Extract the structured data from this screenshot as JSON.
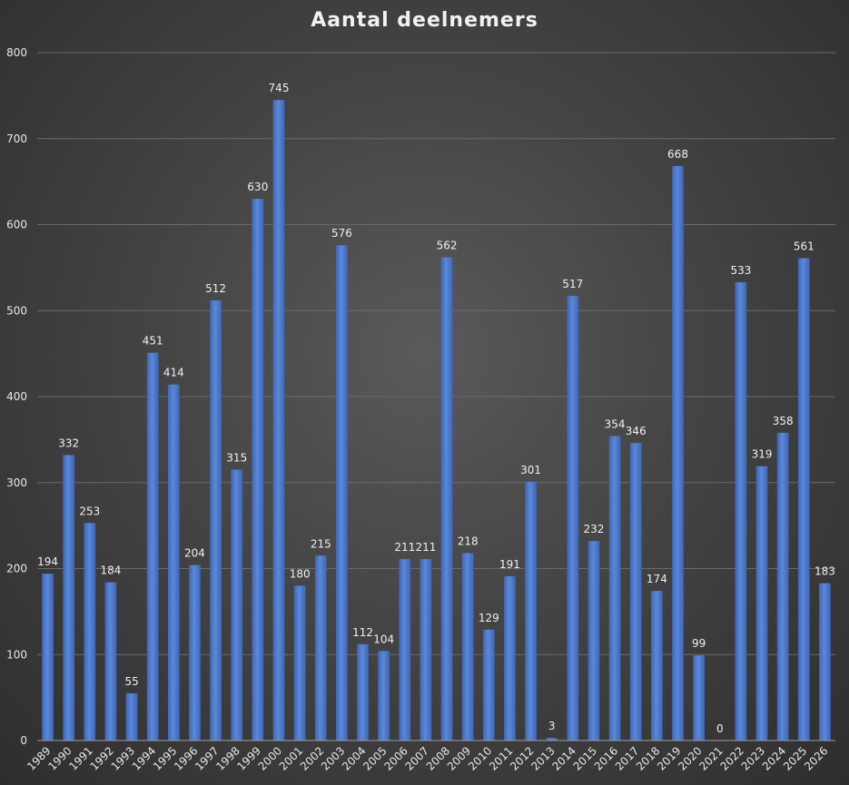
{
  "chart_data": {
    "type": "bar",
    "title": "Aantal deelnemers",
    "xlabel": "",
    "ylabel": "",
    "ylim": [
      0,
      800
    ],
    "yticks": [
      0,
      100,
      200,
      300,
      400,
      500,
      600,
      700,
      800
    ],
    "grid": true,
    "legend": "none",
    "bar_color": "#4a76c9",
    "categories": [
      "1989",
      "1990",
      "1991",
      "1992",
      "1993",
      "1994",
      "1995",
      "1996",
      "1997",
      "1998",
      "1999",
      "2000",
      "2001",
      "2002",
      "2003",
      "2004",
      "2005",
      "2006",
      "2007",
      "2008",
      "2009",
      "2010",
      "2011",
      "2012",
      "2013",
      "2014",
      "2015",
      "2016",
      "2017",
      "2018",
      "2019",
      "2020",
      "2021",
      "2022",
      "2023",
      "2024",
      "2025",
      "2026"
    ],
    "values": [
      194,
      332,
      253,
      184,
      55,
      451,
      414,
      204,
      512,
      315,
      630,
      745,
      180,
      215,
      576,
      112,
      104,
      211,
      211,
      562,
      218,
      129,
      191,
      301,
      3,
      517,
      232,
      354,
      346,
      174,
      668,
      99,
      0,
      533,
      319,
      358,
      561,
      183
    ]
  }
}
